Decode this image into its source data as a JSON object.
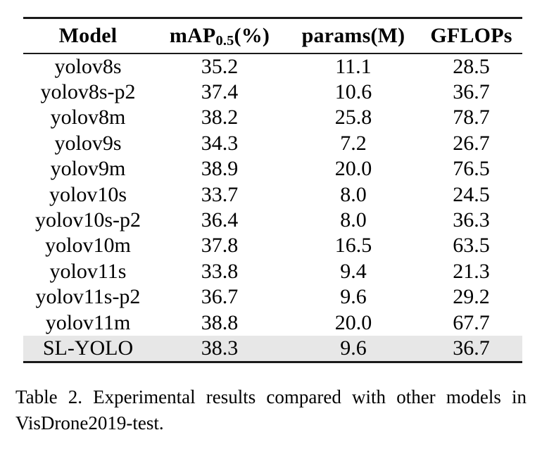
{
  "page": {
    "background_color": "#ffffff",
    "text_color": "#000000",
    "rule_color": "#1a1a1a",
    "highlight_color": "#e7e7e7"
  },
  "table": {
    "headers": [
      {
        "label": "Model"
      },
      {
        "base": "mAP",
        "sub": "0.5",
        "suffix": "(%)"
      },
      {
        "label": "params(M)"
      },
      {
        "label": "GFLOPs"
      }
    ],
    "rows": [
      {
        "model": "yolov8s",
        "map": "35.2",
        "params": "11.1",
        "gflops": "28.5"
      },
      {
        "model": "yolov8s-p2",
        "map": "37.4",
        "params": "10.6",
        "gflops": "36.7"
      },
      {
        "model": "yolov8m",
        "map": "38.2",
        "params": "25.8",
        "gflops": "78.7"
      },
      {
        "model": "yolov9s",
        "map": "34.3",
        "params": "7.2",
        "gflops": "26.7"
      },
      {
        "model": "yolov9m",
        "map": "38.9",
        "params": "20.0",
        "gflops": "76.5"
      },
      {
        "model": "yolov10s",
        "map": "33.7",
        "params": "8.0",
        "gflops": "24.5"
      },
      {
        "model": "yolov10s-p2",
        "map": "36.4",
        "params": "8.0",
        "gflops": "36.3"
      },
      {
        "model": "yolov10m",
        "map": "37.8",
        "params": "16.5",
        "gflops": "63.5"
      },
      {
        "model": "yolov11s",
        "map": "33.8",
        "params": "9.4",
        "gflops": "21.3"
      },
      {
        "model": "yolov11s-p2",
        "map": "36.7",
        "params": "9.6",
        "gflops": "29.2"
      },
      {
        "model": "yolov11m",
        "map": "38.8",
        "params": "20.0",
        "gflops": "67.7"
      },
      {
        "model": "SL-YOLO",
        "map": "38.3",
        "params": "9.6",
        "gflops": "36.7",
        "highlighted": true
      }
    ]
  },
  "caption": {
    "lines": [
      "Table 2. Experimental results compared with other models in",
      "VisDrone2019-test."
    ],
    "text": "Table 2. Experimental results compared with other models in VisDrone2019-test."
  }
}
